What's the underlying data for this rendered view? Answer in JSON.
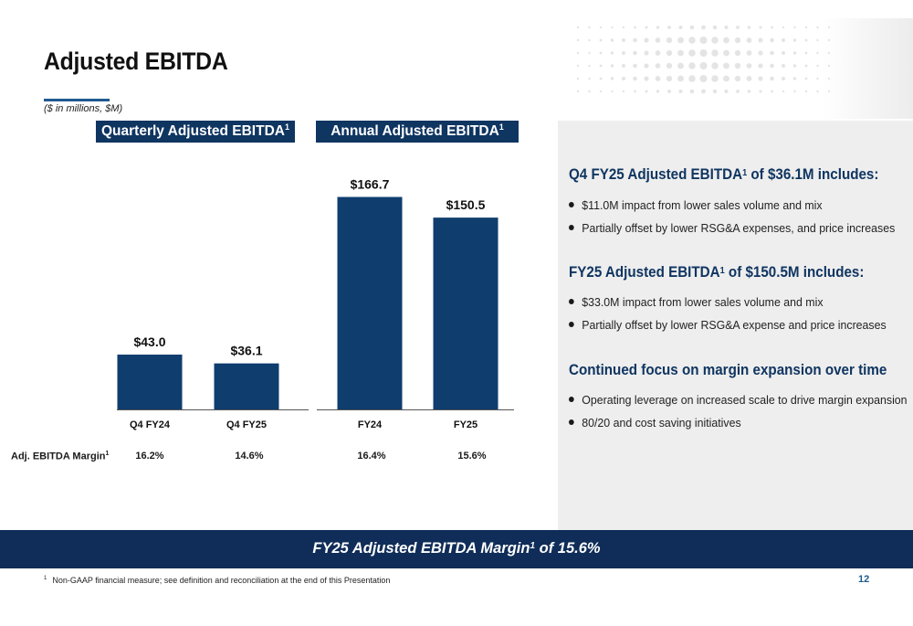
{
  "slide": {
    "title": "Adjusted EBITDA",
    "units_note": "($ in millions, $M)",
    "page_number": "12"
  },
  "headers": {
    "quarterly": "Quarterly Adjusted EBITDA",
    "annual": "Annual Adjusted EBITDA",
    "sup": "1"
  },
  "chart_data": [
    {
      "type": "bar",
      "title": "Quarterly Adjusted EBITDA",
      "categories": [
        "Q4 FY24",
        "Q4 FY25"
      ],
      "values": [
        43.0,
        36.1
      ],
      "value_labels": [
        "$43.0",
        "$36.1"
      ],
      "ylim": [
        0,
        185
      ],
      "grid": false,
      "color": "#0f3d6e"
    },
    {
      "type": "bar",
      "title": "Annual Adjusted EBITDA",
      "categories": [
        "FY24",
        "FY25"
      ],
      "values": [
        166.7,
        150.5
      ],
      "value_labels": [
        "$166.7",
        "$150.5"
      ],
      "ylim": [
        0,
        185
      ],
      "grid": false,
      "color": "#0f3d6e"
    }
  ],
  "margin_row": {
    "label": "Adj. EBITDA Margin",
    "sup": "1",
    "values": [
      "16.2%",
      "14.6%",
      "16.4%",
      "15.6%"
    ]
  },
  "panel": {
    "sections": [
      {
        "title_pre": "Q4 FY25 Adjusted EBITDA",
        "title_sup": "1",
        "title_post": " of $36.1M includes:",
        "bullets": [
          "$11.0M impact from lower sales volume and mix",
          "Partially offset by lower RSG&A expenses, and price increases"
        ]
      },
      {
        "title_pre": "FY25 Adjusted EBITDA",
        "title_sup": "1",
        "title_post": " of $150.5M includes:",
        "bullets": [
          "$33.0M impact from lower sales volume and mix",
          "Partially offset by lower RSG&A expense and price increases"
        ]
      },
      {
        "title_pre": "Continued focus on margin expansion over time",
        "title_sup": "",
        "title_post": "",
        "bullets": [
          "Operating leverage on increased scale to drive margin expansion",
          "80/20 and cost saving initiatives"
        ]
      }
    ]
  },
  "footer": {
    "pre": "FY25 Adjusted EBITDA Margin",
    "sup": "1",
    "post": " of 15.6%"
  },
  "footnote": {
    "marker": "1",
    "text": "Non-GAAP financial measure; see definition and reconciliation at the end of this Presentation"
  },
  "colors": {
    "navy": "#0f3561",
    "bar": "#0f3d6e",
    "panel_bg": "#eeeeee",
    "accent": "#1f5a90"
  }
}
